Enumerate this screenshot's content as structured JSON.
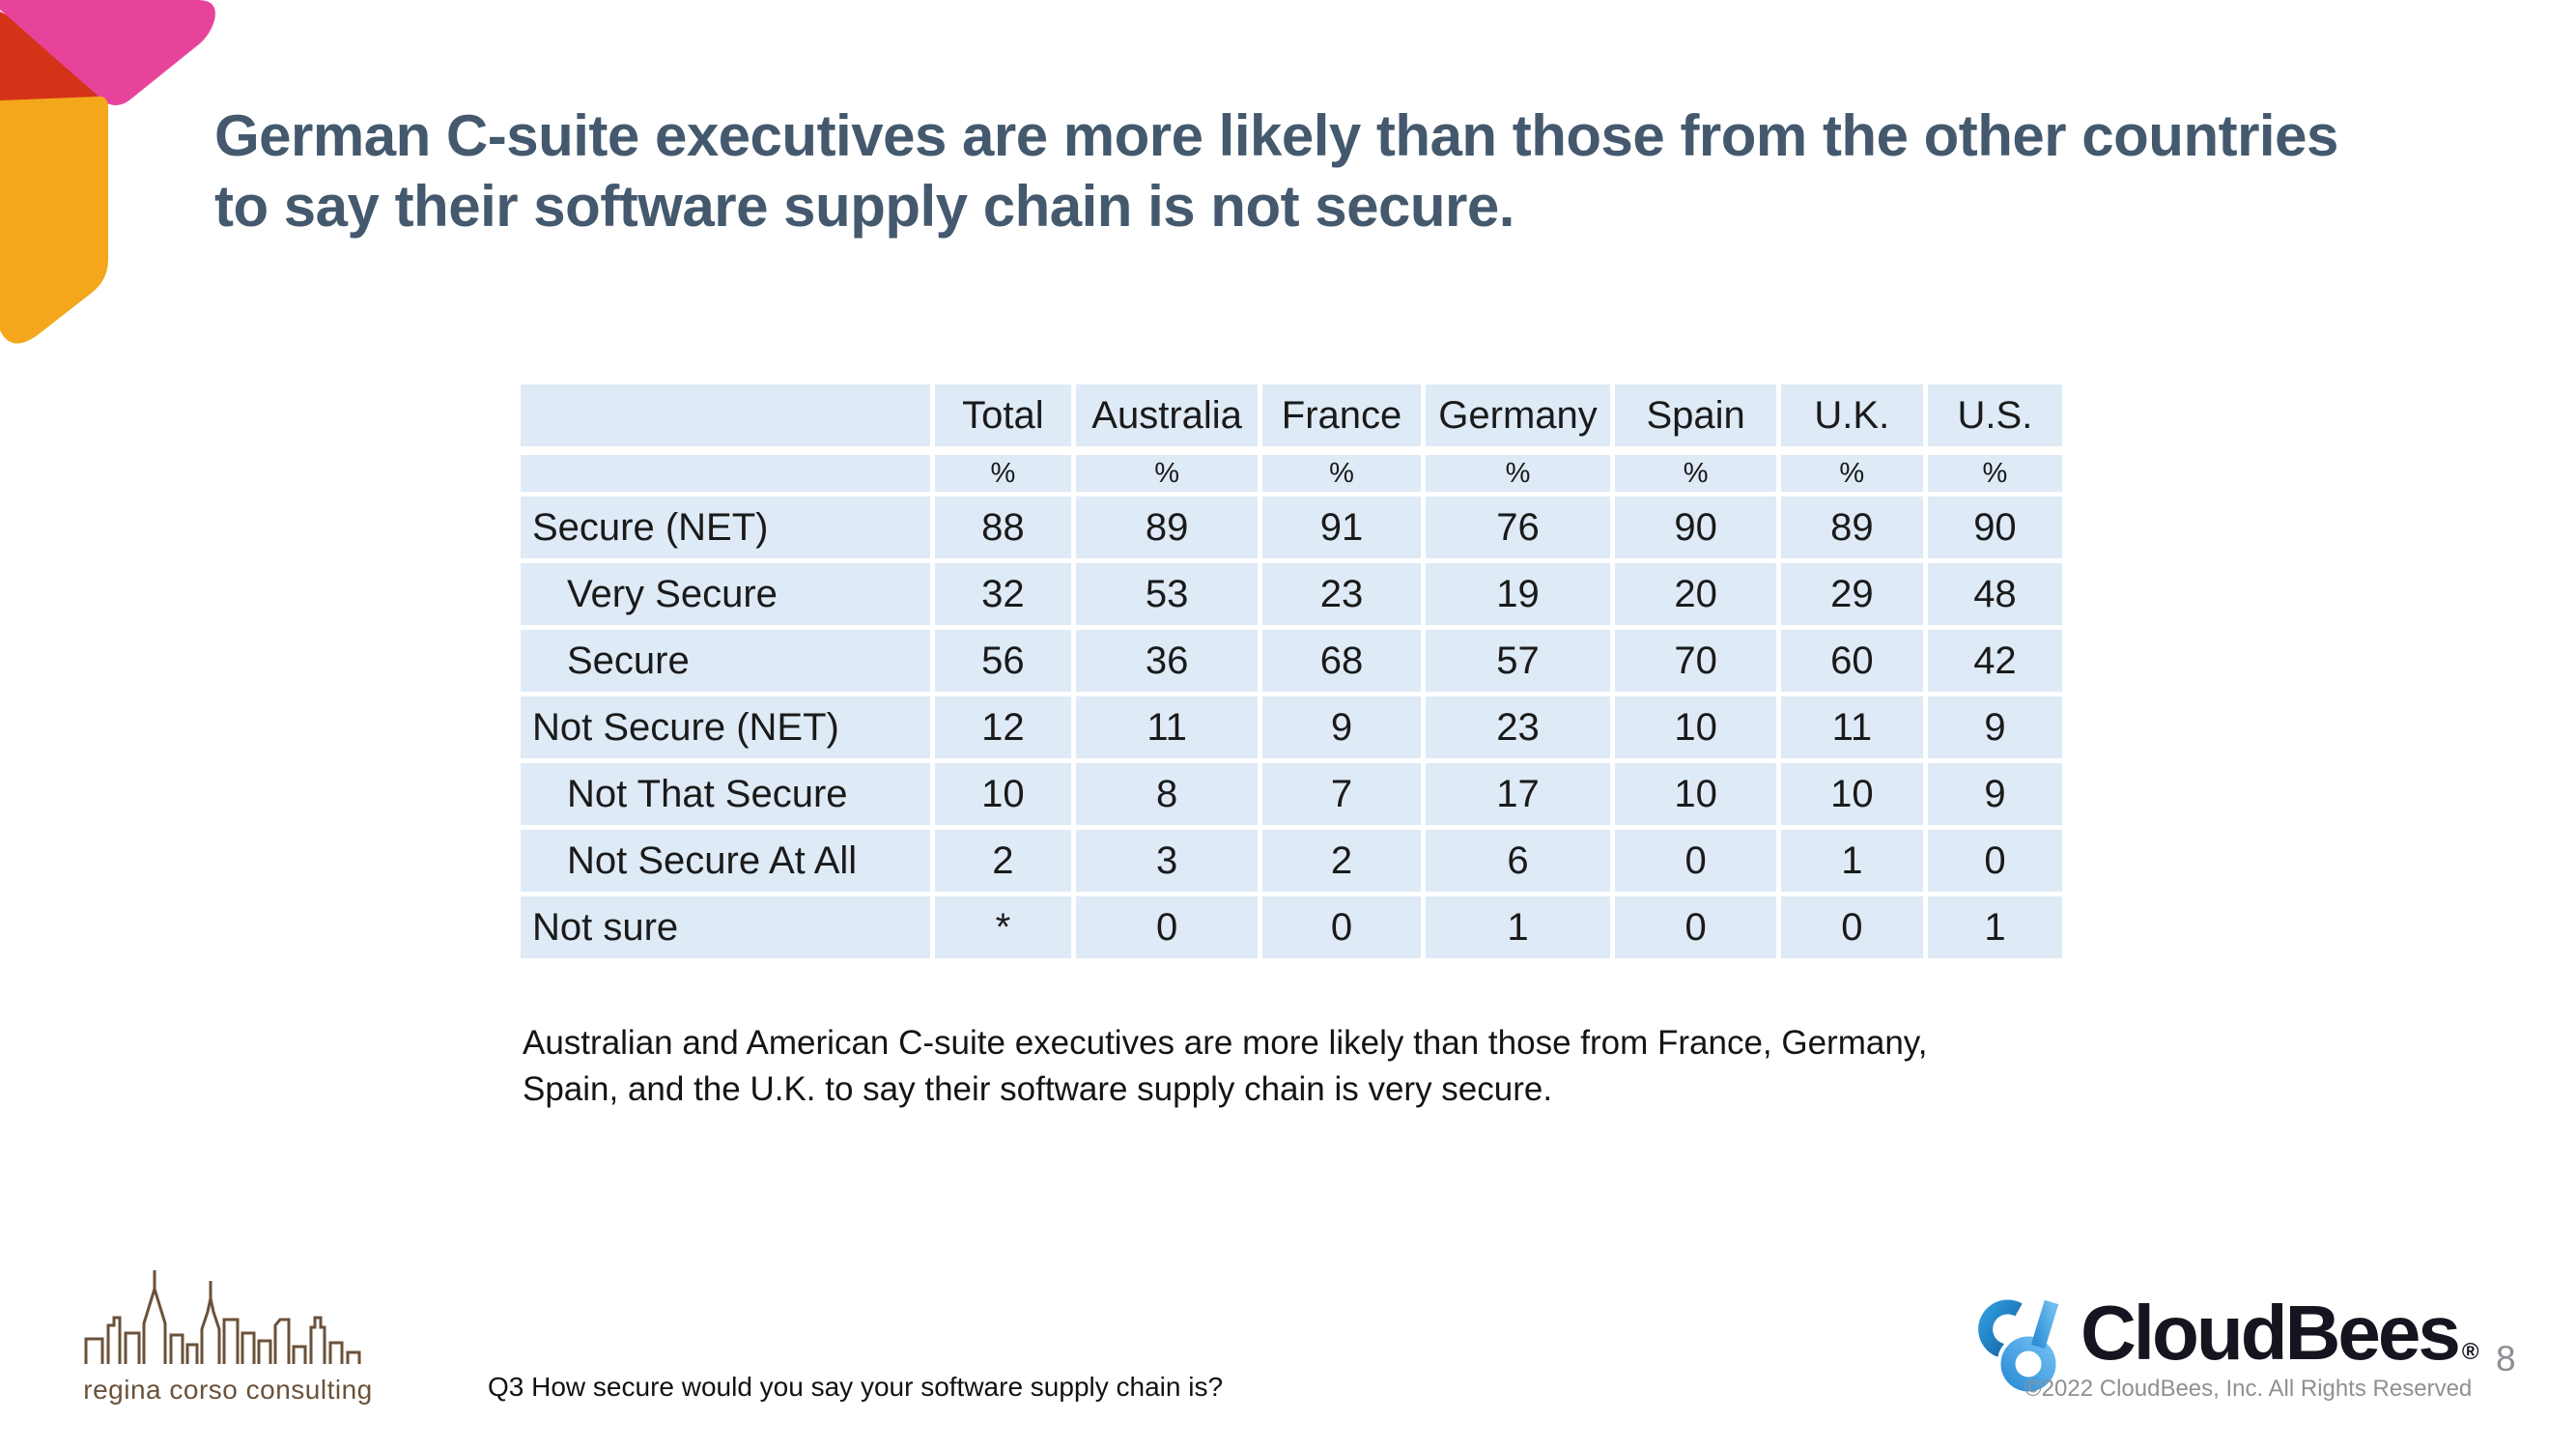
{
  "title_lines": [
    "German C-suite executives are more likely than those from the other countries",
    "to say their software supply chain is not secure."
  ],
  "table": {
    "columns": [
      "",
      "Total",
      "Australia",
      "France",
      "Germany",
      "Spain",
      "U.K.",
      "U.S."
    ],
    "unit_row": [
      "",
      "%",
      "%",
      "%",
      "%",
      "%",
      "%",
      "%"
    ],
    "rows": [
      {
        "label": "Secure (NET)",
        "indent": false,
        "values": [
          "88",
          "89",
          "91",
          "76",
          "90",
          "89",
          "90"
        ]
      },
      {
        "label": "Very Secure",
        "indent": true,
        "values": [
          "32",
          "53",
          "23",
          "19",
          "20",
          "29",
          "48"
        ]
      },
      {
        "label": "Secure",
        "indent": true,
        "values": [
          "56",
          "36",
          "68",
          "57",
          "70",
          "60",
          "42"
        ]
      },
      {
        "label": "Not Secure (NET)",
        "indent": false,
        "values": [
          "12",
          "11",
          "9",
          "23",
          "10",
          "11",
          "9"
        ]
      },
      {
        "label": "Not That Secure",
        "indent": true,
        "values": [
          "10",
          "8",
          "7",
          "17",
          "10",
          "10",
          "9"
        ]
      },
      {
        "label": "Not Secure At All",
        "indent": true,
        "values": [
          "2",
          "3",
          "2",
          "6",
          "0",
          "1",
          "0"
        ]
      },
      {
        "label": "Not sure",
        "indent": false,
        "values": [
          "*",
          "0",
          "0",
          "1",
          "0",
          "0",
          "1"
        ]
      }
    ]
  },
  "note_lines": [
    "Australian and American C-suite executives are more likely than those from France, Germany,",
    "Spain, and the U.K. to say their software supply chain is very secure."
  ],
  "footer": {
    "question": "Q3 How secure would you say your software supply chain is?",
    "consulting_logo_text": "regina corso consulting",
    "cloudbees_wordmark": "CloudBees",
    "registered_mark": "®",
    "copyright": "©2022 CloudBees, Inc. All Rights Reserved",
    "page_number": "8"
  },
  "colors": {
    "title_text": "#44596E",
    "table_cell_bg": "#DEEAF6",
    "table_text": "#1A1A1A",
    "brand_pink": "#E8439B",
    "brand_red": "#D43317",
    "brand_orange": "#F4A71B",
    "consulting_brown": "#6B5139",
    "cloudbees_dark_blue": "#1B76BC",
    "cloudbees_light_blue": "#45A5EA",
    "wordmark_text": "#14151E",
    "muted_gray": "#8E9093"
  }
}
